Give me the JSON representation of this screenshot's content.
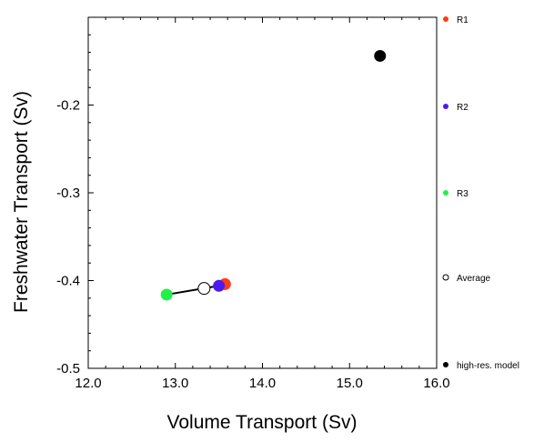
{
  "chart_data": {
    "type": "scatter",
    "title": "",
    "xlabel": "Volume Transport (Sv)",
    "ylabel": "Freshwater Transport (Sv)",
    "xlim": [
      12.0,
      16.0
    ],
    "ylim": [
      -0.5,
      -0.1
    ],
    "x_ticks": [
      "12.0",
      "13.0",
      "14.0",
      "15.0",
      "16.0"
    ],
    "y_ticks": [
      "-0.5",
      "-0.4",
      "-0.3",
      "-0.2"
    ],
    "grid": false,
    "legend_position": "right",
    "series": [
      {
        "name": "R1",
        "x": 13.57,
        "y": -0.404,
        "color": "#ff3c14",
        "marker": "filled-circle"
      },
      {
        "name": "R2",
        "x": 13.5,
        "y": -0.406,
        "color": "#4a1cf0",
        "marker": "filled-circle"
      },
      {
        "name": "R3",
        "x": 12.9,
        "y": -0.416,
        "color": "#22f04a",
        "marker": "filled-circle"
      },
      {
        "name": "Average",
        "x": 13.33,
        "y": -0.409,
        "color": "#000000",
        "marker": "open-circle"
      },
      {
        "name": "high-res. model",
        "x": 15.35,
        "y": -0.144,
        "color": "#000000",
        "marker": "filled-circle"
      }
    ],
    "connector_line": {
      "from": "R3",
      "to": "R2",
      "color": "#000000"
    }
  }
}
